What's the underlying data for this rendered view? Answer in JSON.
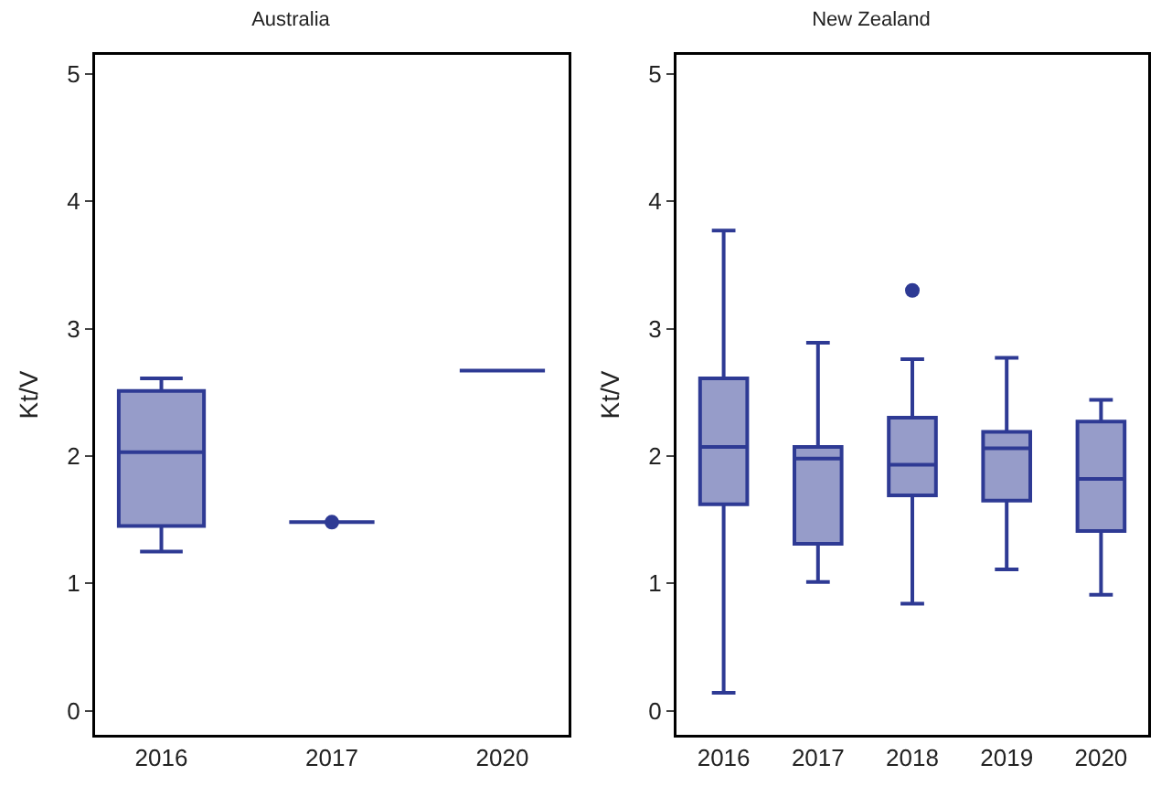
{
  "chart_data": [
    {
      "type": "box",
      "title": "Australia",
      "ylabel": "Kt/V",
      "categories": [
        "2016",
        "2017",
        "2020"
      ],
      "ylim": [
        -0.19,
        5.15
      ],
      "yticks": [
        0,
        1,
        2,
        3,
        4,
        5
      ],
      "grid": false,
      "series": [
        {
          "color": "#2e3a94",
          "boxes": [
            {
              "low": 1.25,
              "q1": 1.45,
              "median": 2.03,
              "q3": 2.51,
              "high": 2.61
            },
            {
              "low": 1.48,
              "q1": 1.48,
              "median": 1.48,
              "q3": 1.48,
              "high": 1.48,
              "outliers": [
                1.48
              ]
            },
            {
              "low": 2.67,
              "q1": 2.67,
              "median": 2.67,
              "q3": 2.67,
              "high": 2.67
            }
          ]
        }
      ]
    },
    {
      "type": "box",
      "title": "New Zealand",
      "ylabel": "Kt/V",
      "categories": [
        "2016",
        "2017",
        "2018",
        "2019",
        "2020"
      ],
      "ylim": [
        -0.19,
        5.15
      ],
      "yticks": [
        0,
        1,
        2,
        3,
        4,
        5
      ],
      "grid": false,
      "series": [
        {
          "color": "#2e3a94",
          "boxes": [
            {
              "low": 0.14,
              "q1": 1.62,
              "median": 2.07,
              "q3": 2.61,
              "high": 3.77
            },
            {
              "low": 1.01,
              "q1": 1.31,
              "median": 1.98,
              "q3": 2.07,
              "high": 2.89
            },
            {
              "low": 0.84,
              "q1": 1.69,
              "median": 1.93,
              "q3": 2.3,
              "high": 2.76,
              "outliers": [
                3.3
              ]
            },
            {
              "low": 1.11,
              "q1": 1.65,
              "median": 2.06,
              "q3": 2.19,
              "high": 2.77
            },
            {
              "low": 0.91,
              "q1": 1.41,
              "median": 1.82,
              "q3": 2.27,
              "high": 2.44
            }
          ]
        }
      ]
    }
  ]
}
